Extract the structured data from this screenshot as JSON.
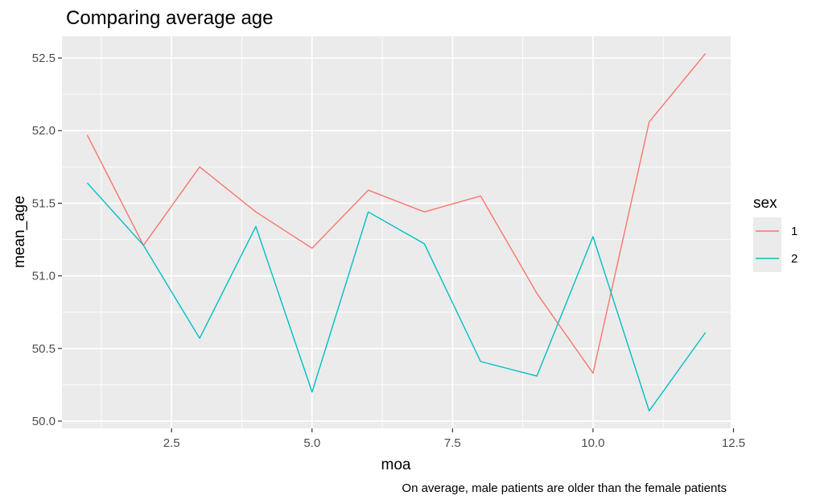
{
  "chart_data": {
    "type": "line",
    "title": "Comparing average age",
    "xlabel": "moa",
    "ylabel": "mean_age",
    "caption": "On average, male patients are older than the female patients",
    "xlim": [
      0.55,
      12.45
    ],
    "ylim": [
      49.95,
      52.65
    ],
    "x_ticks": [
      2.5,
      5.0,
      7.5,
      10.0,
      12.5
    ],
    "x_tick_labels": [
      "2.5",
      "5.0",
      "7.5",
      "10.0",
      "12.5"
    ],
    "y_ticks": [
      50.0,
      50.5,
      51.0,
      51.5,
      52.0,
      52.5
    ],
    "y_tick_labels": [
      "50.0",
      "50.5",
      "51.0",
      "51.5",
      "52.0",
      "52.5"
    ],
    "grid": true,
    "legend": {
      "title": "sex",
      "position": "right"
    },
    "x": [
      1,
      2,
      3,
      4,
      5,
      6,
      7,
      8,
      9,
      10,
      11,
      12
    ],
    "series": [
      {
        "name": "1",
        "color": "#F8766D",
        "values": [
          51.97,
          51.21,
          51.75,
          51.44,
          51.19,
          51.59,
          51.44,
          51.55,
          50.88,
          50.33,
          52.06,
          52.53
        ]
      },
      {
        "name": "2",
        "color": "#00BFC4",
        "values": [
          51.64,
          51.21,
          50.57,
          51.34,
          50.2,
          51.44,
          51.22,
          50.41,
          50.31,
          51.27,
          50.07,
          50.61
        ]
      }
    ],
    "panel_color": "#EBEBEB",
    "grid_color": "#FFFFFF"
  }
}
